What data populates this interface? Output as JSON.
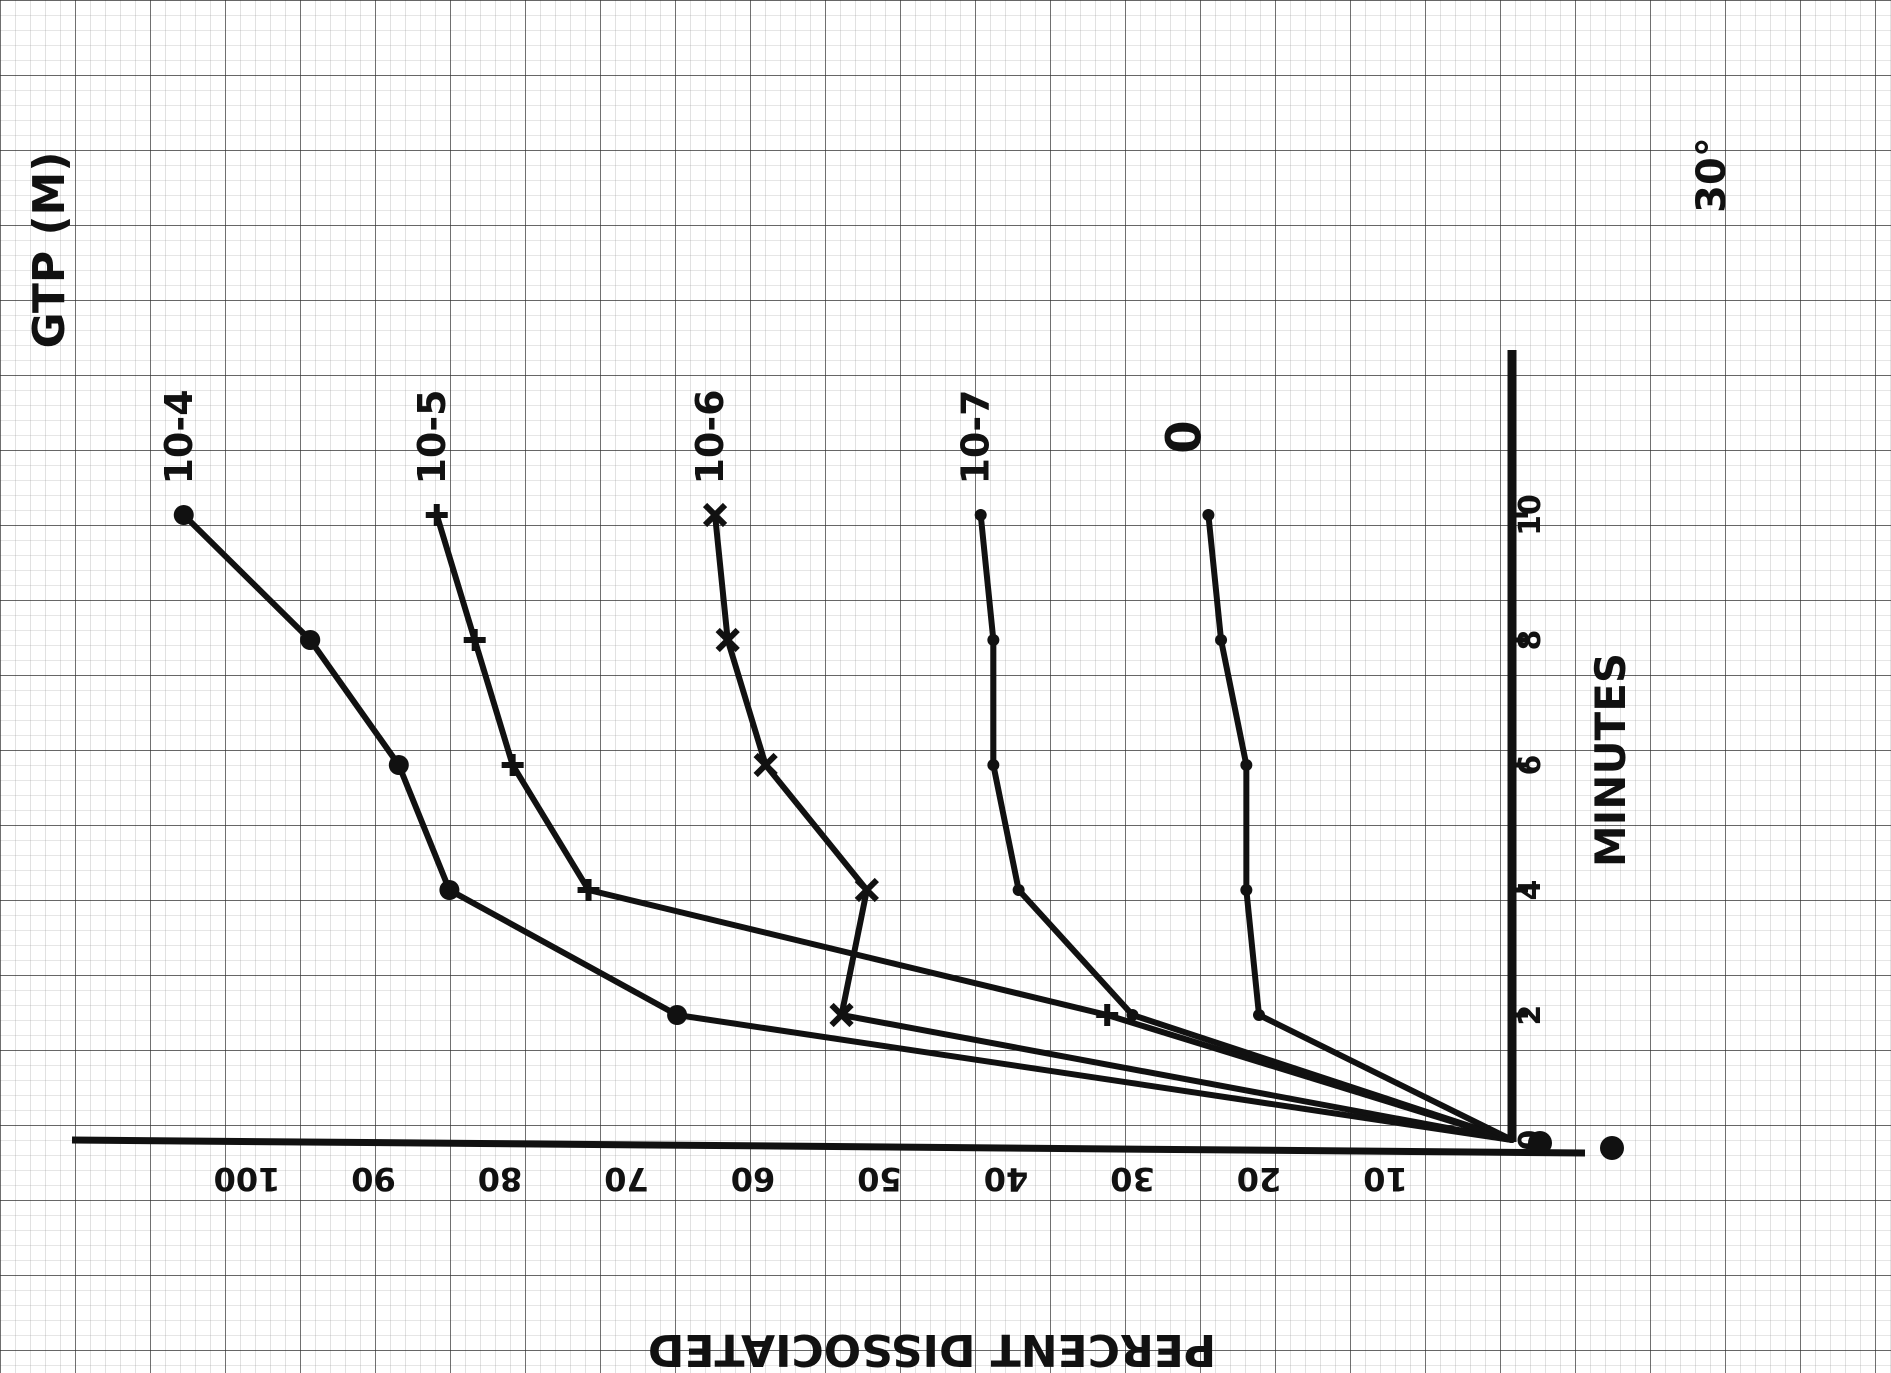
{
  "chart_data": {
    "type": "line",
    "orientation": "rotated 90 degrees clockwise; minutes axis vertical, percent axis horizontal",
    "x": [
      0,
      2,
      4,
      6,
      8,
      10
    ],
    "xlabel": "MINUTES",
    "x_tick_labels": [
      "0",
      "2",
      "4",
      "6",
      "8",
      "10"
    ],
    "ylabel": "PERCENT DISSOCIATED",
    "y_tick_labels": [
      "10",
      "20",
      "30",
      "40",
      "50",
      "60",
      "70",
      "80",
      "90",
      "100"
    ],
    "ylim": [
      0,
      100
    ],
    "legend_title": "GTP (M)",
    "temperature_label": "30°",
    "grid": true,
    "series": [
      {
        "name": "10-4",
        "marker": "circle",
        "values": [
          0,
          66,
          84,
          88,
          95,
          105
        ]
      },
      {
        "name": "10-5",
        "marker": "cross",
        "values": [
          0,
          32,
          73,
          79,
          82,
          85
        ]
      },
      {
        "name": "10-6",
        "marker": "x",
        "values": [
          0,
          53,
          51,
          59,
          62,
          63
        ]
      },
      {
        "name": "10-7",
        "marker": "dot",
        "values": [
          0,
          30,
          39,
          41,
          41,
          42
        ]
      },
      {
        "name": "0",
        "marker": "dot",
        "values": [
          0,
          20,
          21,
          21,
          23,
          24
        ]
      }
    ]
  }
}
